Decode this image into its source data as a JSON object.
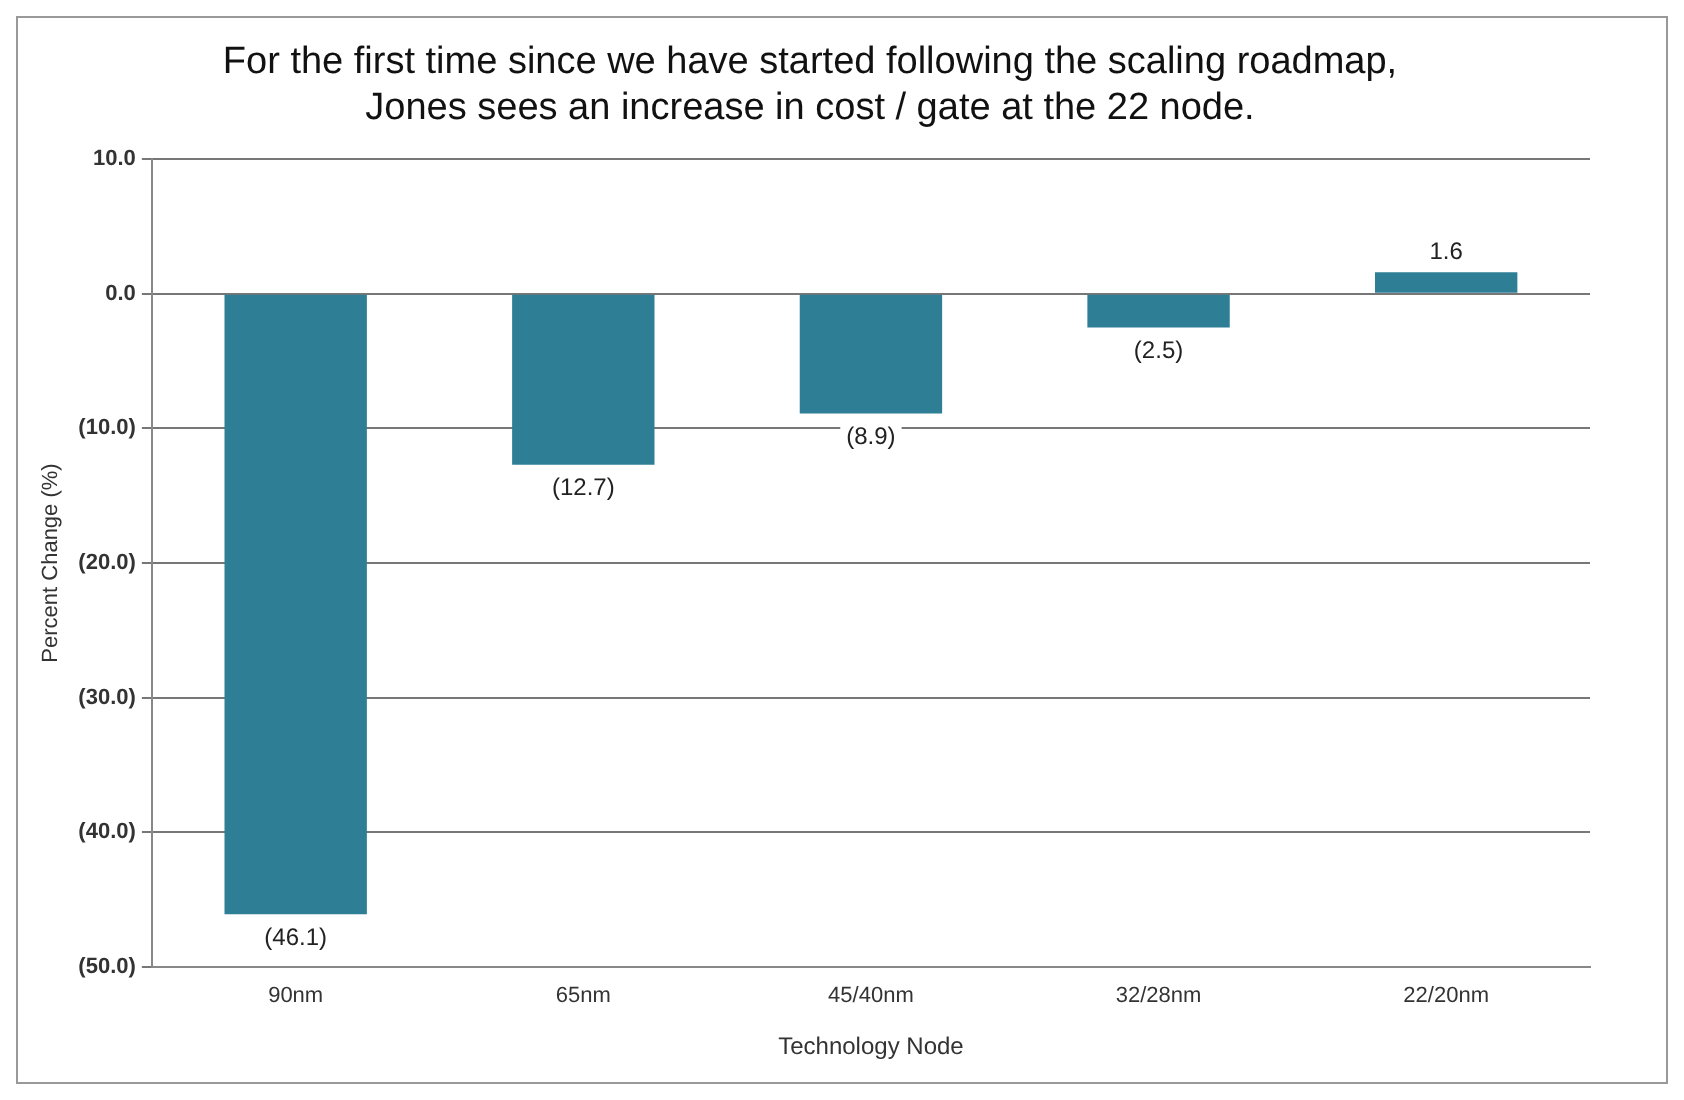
{
  "chart_data": {
    "type": "bar",
    "title": "For the first time since we have started following the scaling roadmap,\nJones sees an increase in cost / gate at the 22 node.",
    "xlabel": "Technology Node",
    "ylabel": "Percent Change (%)",
    "categories": [
      "90nm",
      "65nm",
      "45/40nm",
      "32/28nm",
      "22/20nm"
    ],
    "values": [
      -46.1,
      -12.7,
      -8.9,
      -2.5,
      1.6
    ],
    "value_labels": [
      "(46.1)",
      "(12.7)",
      "(8.9)",
      "(2.5)",
      "1.6"
    ],
    "color": "#2e7f96",
    "ylim": [
      -50,
      10
    ],
    "yticks": [
      {
        "value": 10,
        "label": "10.0"
      },
      {
        "value": 0,
        "label": "0.0"
      },
      {
        "value": -10,
        "label": "(10.0)"
      },
      {
        "value": -20,
        "label": "(20.0)"
      },
      {
        "value": -30,
        "label": "(30.0)"
      },
      {
        "value": -40,
        "label": "(40.0)"
      },
      {
        "value": -50,
        "label": "(50.0)"
      }
    ],
    "grid": "y",
    "legend": false
  }
}
